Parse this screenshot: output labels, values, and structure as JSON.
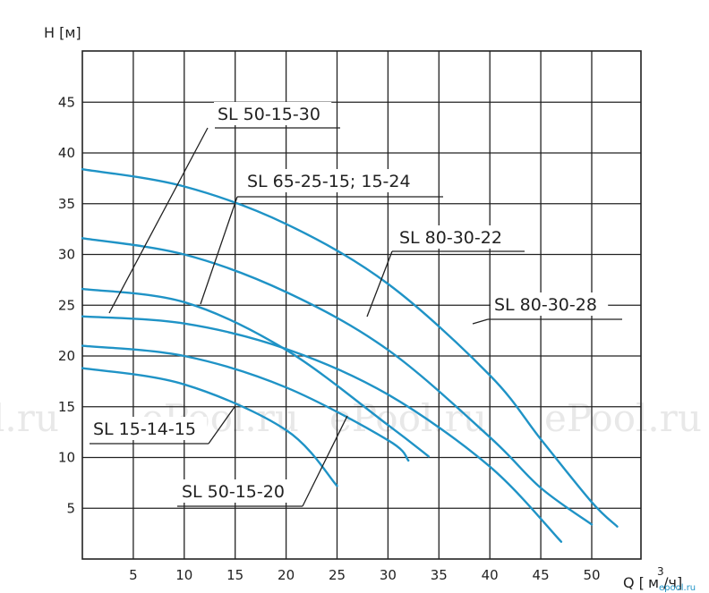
{
  "chart_data": {
    "type": "line",
    "ylabel": "H [м]",
    "xlabel": "Q [м³/ч]",
    "xlabel_prefix": "Q [",
    "xlabel_unit": "м /ч]",
    "xlabel_sup": "3",
    "xlim": [
      0,
      55
    ],
    "ylim": [
      0,
      50
    ],
    "x_ticks": [
      5,
      10,
      15,
      20,
      25,
      30,
      35,
      40,
      45,
      50
    ],
    "y_ticks": [
      5,
      10,
      15,
      20,
      25,
      30,
      35,
      40,
      45
    ],
    "grid": true,
    "series": [
      {
        "name": "SL 80-30-28",
        "x": [
          0,
          10,
          20,
          30,
          40,
          45,
          50,
          52.5
        ],
        "y": [
          38.4,
          36.7,
          33.0,
          27.1,
          18.1,
          11.8,
          5.6,
          3.2
        ]
      },
      {
        "name": "SL 80-30-22",
        "x": [
          0,
          10,
          20,
          30,
          40,
          45,
          50
        ],
        "y": [
          31.6,
          30.0,
          26.3,
          20.6,
          12.0,
          7.0,
          3.4
        ]
      },
      {
        "name": "SL 50-15-30",
        "x": [
          0,
          10,
          20,
          30,
          34
        ],
        "y": [
          26.6,
          25.3,
          20.6,
          13.2,
          10.1
        ]
      },
      {
        "name": "SL 65-25-15; 15-24",
        "x": [
          0,
          10,
          20,
          30,
          40,
          47
        ],
        "y": [
          23.9,
          23.2,
          20.7,
          16.2,
          9.1,
          1.7
        ]
      },
      {
        "name": "SL 50-15-20",
        "x": [
          0,
          10,
          20,
          30,
          32
        ],
        "y": [
          21.0,
          20.0,
          16.9,
          11.7,
          9.7
        ]
      },
      {
        "name": "SL 15-14-15",
        "x": [
          0,
          10,
          20,
          25
        ],
        "y": [
          18.8,
          17.2,
          12.7,
          7.2
        ]
      }
    ],
    "labels": [
      {
        "text": "SL 50-15-30"
      },
      {
        "text": "SL 65-25-15; 15-24"
      },
      {
        "text": "SL 80-30-22"
      },
      {
        "text": "SL 80-30-28"
      },
      {
        "text": "SL 15-14-15"
      },
      {
        "text": "SL 50-15-20"
      }
    ]
  },
  "watermarks": [
    "l.ru",
    "ePool.ru",
    "ePool.ru",
    "ePool.ru"
  ],
  "corner_brand": "epool.ru",
  "colors": {
    "curve": "#1f93c6",
    "grid": "#222222"
  }
}
